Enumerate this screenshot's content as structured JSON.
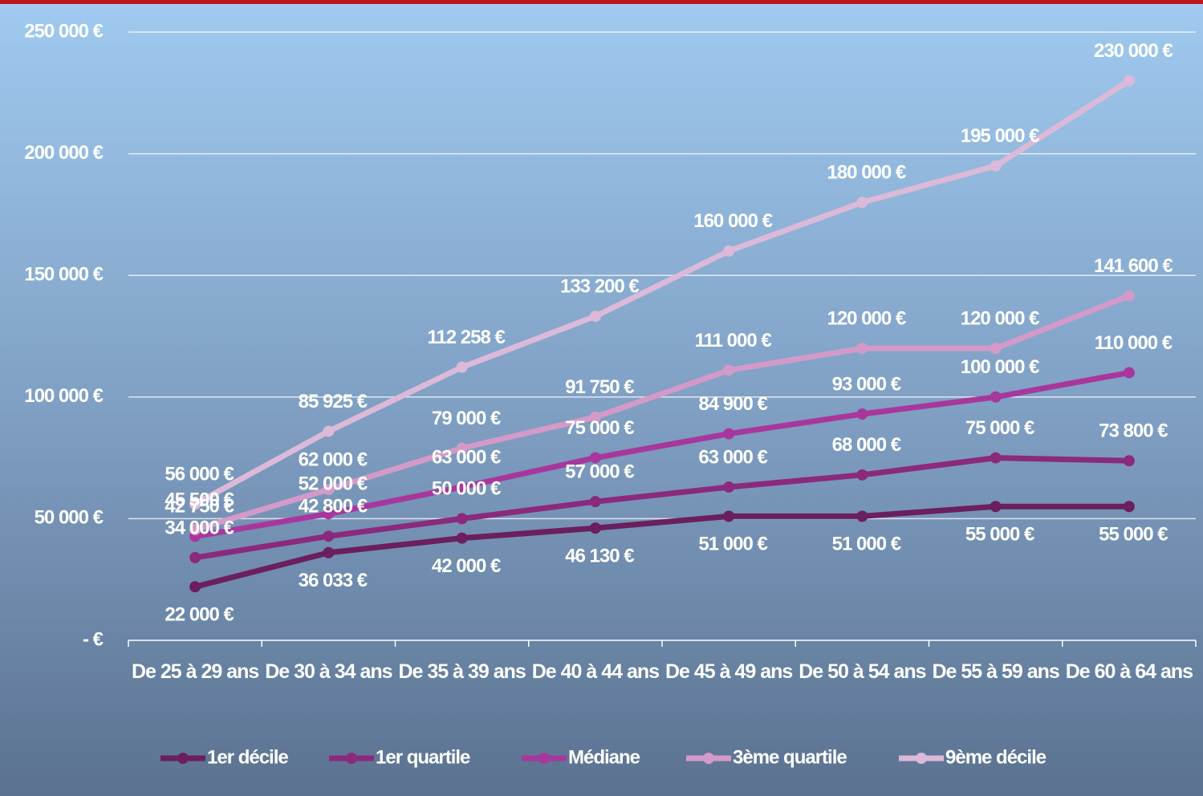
{
  "chart_data": {
    "type": "line",
    "categories": [
      "De 25 à 29 ans",
      "De 30 à 34 ans",
      "De 35 à 39 ans",
      "De 40 à 44 ans",
      "De 45 à 49 ans",
      "De 50 à 54 ans",
      "De 55 à 59 ans",
      "De 60 à 64 ans"
    ],
    "ylim": [
      0,
      250000
    ],
    "yticks": [
      {
        "value": 0,
        "label": "- €"
      },
      {
        "value": 50000,
        "label": "50 000 €"
      },
      {
        "value": 100000,
        "label": "100 000 €"
      },
      {
        "value": 150000,
        "label": "150 000 €"
      },
      {
        "value": 200000,
        "label": "200 000 €"
      },
      {
        "value": 250000,
        "label": "250 000 €"
      }
    ],
    "grid": true,
    "legend": "bottom",
    "series": [
      {
        "name": "1er décile",
        "color": "#6b1f5e",
        "values": [
          22000,
          36033,
          42000,
          46130,
          51000,
          51000,
          55000,
          55000
        ],
        "value_labels": [
          "22 000 €",
          "36 033 €",
          "42 000 €",
          "46 130 €",
          "51 000 €",
          "51 000 €",
          "55 000 €",
          "55 000 €"
        ]
      },
      {
        "name": "1er quartile",
        "color": "#8b2a7d",
        "values": [
          34000,
          42800,
          50000,
          57000,
          63000,
          68000,
          75000,
          73800
        ],
        "value_labels": [
          "34 000 €",
          "42 800 €",
          "50 000 €",
          "57 000 €",
          "63 000 €",
          "68 000 €",
          "75 000 €",
          "73 800 €"
        ]
      },
      {
        "name": "Médiane",
        "color": "#a8379d",
        "values": [
          42750,
          52000,
          63000,
          75000,
          84900,
          93000,
          100000,
          110000
        ],
        "value_labels": [
          "42 750 €",
          "52 000 €",
          "63 000 €",
          "75 000 €",
          "84 900 €",
          "93 000 €",
          "100 000 €",
          "110 000 €"
        ]
      },
      {
        "name": "3ème quartile",
        "color": "#d39ac9",
        "values": [
          45500,
          62000,
          79000,
          91750,
          111000,
          120000,
          120000,
          141600
        ],
        "value_labels": [
          "45 500 €",
          "62 000 €",
          "79 000 €",
          "91 750 €",
          "111 000 €",
          "120 000 €",
          "120 000 €",
          "141 600 €"
        ]
      },
      {
        "name": "9ème décile",
        "color": "#dcb9d8",
        "values": [
          56000,
          85925,
          112258,
          133200,
          160000,
          180000,
          195000,
          230000
        ],
        "value_labels": [
          "56 000 €",
          "85 925 €",
          "112 258 €",
          "133 200 €",
          "160 000 €",
          "180 000 €",
          "195 000 €",
          "230 000 €"
        ]
      }
    ]
  }
}
